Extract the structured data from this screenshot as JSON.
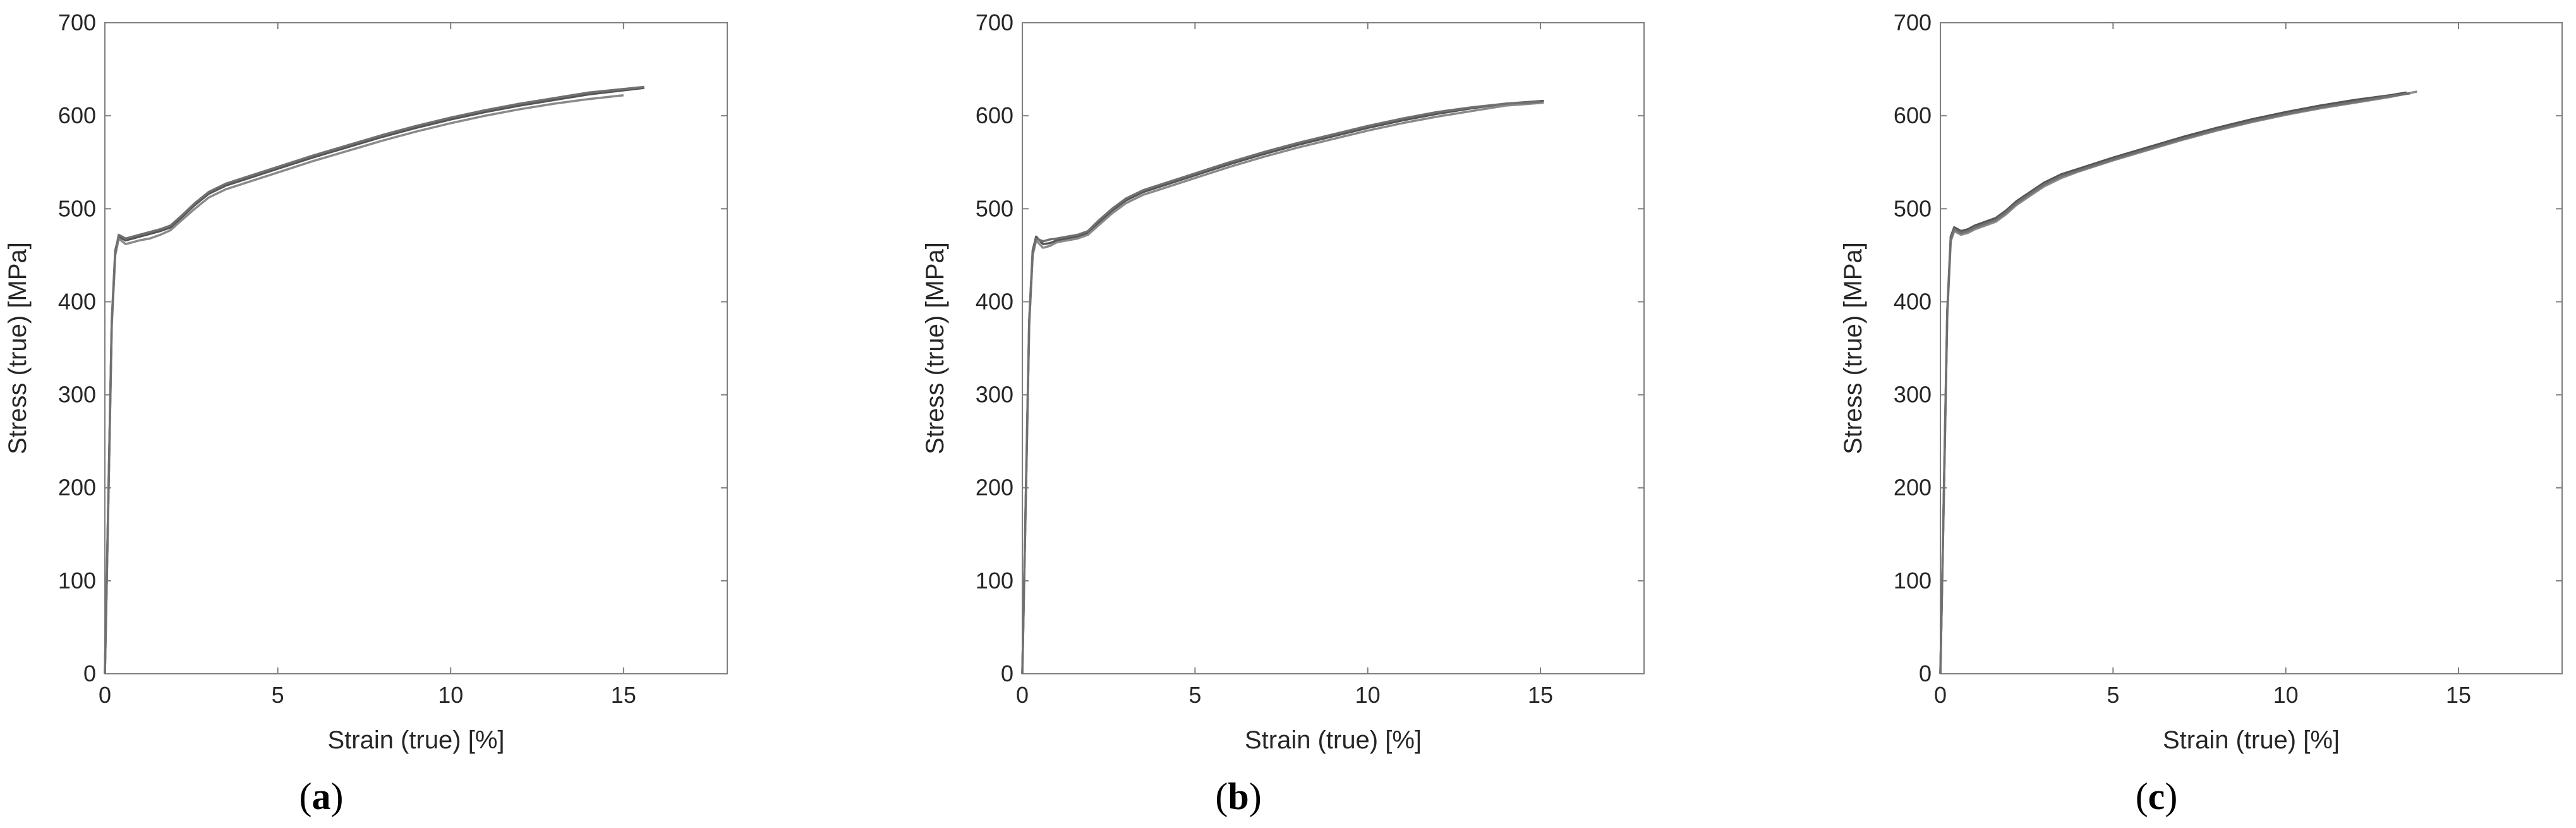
{
  "chart_data": [
    {
      "type": "line",
      "panel_label": "a",
      "xlabel": "Strain (true) [%]",
      "ylabel": "Stress (true) [MPa]",
      "xlim": [
        0,
        18
      ],
      "ylim": [
        0,
        700
      ],
      "xticks": [
        0,
        5,
        10,
        15
      ],
      "yticks": [
        0,
        100,
        200,
        300,
        400,
        500,
        600,
        700
      ],
      "grid": false,
      "series": [
        {
          "x": [
            0,
            0.1,
            0.2,
            0.3,
            0.4,
            0.6,
            0.8,
            1.0,
            1.3,
            1.6,
            1.9,
            2.2,
            2.6,
            3.0,
            3.5,
            4.0,
            5.0,
            6.0,
            7.0,
            8.0,
            9.0,
            10.0,
            11.0,
            12.0,
            13.0,
            14.0,
            15.6
          ],
          "y": [
            0,
            190,
            380,
            455,
            470,
            466,
            468,
            470,
            473,
            476,
            480,
            490,
            504,
            516,
            525,
            531,
            543,
            555,
            566,
            577,
            587,
            596,
            604,
            611,
            617,
            623,
            630
          ]
        },
        {
          "x": [
            0,
            0.1,
            0.2,
            0.3,
            0.4,
            0.6,
            0.8,
            1.0,
            1.3,
            1.6,
            1.9,
            2.2,
            2.6,
            3.0,
            3.5,
            4.0,
            5.0,
            6.0,
            7.0,
            8.0,
            9.0,
            10.0,
            11.0,
            12.0,
            13.0,
            14.0,
            15.0
          ],
          "y": [
            0,
            185,
            375,
            450,
            468,
            462,
            464,
            466,
            468,
            472,
            477,
            487,
            500,
            512,
            521,
            527,
            539,
            551,
            562,
            573,
            583,
            592,
            600,
            607,
            613,
            618,
            622
          ]
        },
        {
          "x": [
            0,
            0.1,
            0.2,
            0.3,
            0.4,
            0.6,
            0.8,
            1.0,
            1.3,
            1.6,
            1.9,
            2.2,
            2.6,
            3.0,
            3.5,
            4.0,
            5.0,
            6.0,
            7.0,
            8.0,
            9.0,
            10.0,
            11.0,
            12.0,
            13.0,
            14.0,
            15.6
          ],
          "y": [
            0,
            188,
            378,
            452,
            472,
            468,
            470,
            472,
            475,
            478,
            482,
            492,
            506,
            518,
            527,
            533,
            545,
            557,
            568,
            579,
            589,
            598,
            606,
            613,
            619,
            625,
            631
          ]
        }
      ]
    },
    {
      "type": "line",
      "panel_label": "b",
      "xlabel": "Strain (true) [%]",
      "ylabel": "Stress (true) [MPa]",
      "xlim": [
        0,
        18
      ],
      "ylim": [
        0,
        700
      ],
      "xticks": [
        0,
        5,
        10,
        15
      ],
      "yticks": [
        0,
        100,
        200,
        300,
        400,
        500,
        600,
        700
      ],
      "grid": false,
      "series": [
        {
          "x": [
            0,
            0.1,
            0.2,
            0.3,
            0.4,
            0.6,
            0.8,
            1.0,
            1.3,
            1.6,
            1.9,
            2.2,
            2.6,
            3.0,
            3.5,
            4.0,
            5.0,
            6.0,
            7.0,
            8.0,
            9.0,
            10.0,
            11.0,
            12.0,
            13.0,
            14.0,
            15.1
          ],
          "y": [
            0,
            190,
            380,
            455,
            470,
            462,
            463,
            466,
            468,
            470,
            474,
            485,
            498,
            509,
            518,
            524,
            536,
            548,
            559,
            569,
            578,
            587,
            595,
            602,
            608,
            613,
            616
          ]
        },
        {
          "x": [
            0,
            0.1,
            0.2,
            0.3,
            0.4,
            0.6,
            0.8,
            1.0,
            1.3,
            1.6,
            1.9,
            2.2,
            2.6,
            3.0,
            3.5,
            4.0,
            5.0,
            6.0,
            7.0,
            8.0,
            9.0,
            10.0,
            11.0,
            12.0,
            13.0,
            14.0,
            15.1
          ],
          "y": [
            0,
            185,
            375,
            450,
            466,
            458,
            460,
            464,
            466,
            468,
            472,
            482,
            495,
            506,
            515,
            521,
            533,
            545,
            556,
            566,
            575,
            584,
            592,
            599,
            605,
            611,
            614
          ]
        },
        {
          "x": [
            0,
            0.1,
            0.2,
            0.3,
            0.4,
            0.6,
            0.8,
            1.0,
            1.3,
            1.6,
            1.9,
            2.2,
            2.6,
            3.0,
            3.5,
            4.0,
            5.0,
            6.0,
            7.0,
            8.0,
            9.0,
            10.0,
            11.0,
            12.0,
            13.0,
            14.0,
            15.0
          ],
          "y": [
            0,
            188,
            378,
            452,
            468,
            465,
            467,
            468,
            470,
            472,
            476,
            487,
            500,
            511,
            520,
            526,
            538,
            550,
            561,
            571,
            580,
            589,
            597,
            604,
            609,
            613,
            615
          ]
        }
      ]
    },
    {
      "type": "line",
      "panel_label": "c",
      "xlabel": "Strain (true) [%]",
      "ylabel": "Stress (true) [MPa]",
      "xlim": [
        0,
        18
      ],
      "ylim": [
        0,
        700
      ],
      "xticks": [
        0,
        5,
        10,
        15
      ],
      "yticks": [
        0,
        100,
        200,
        300,
        400,
        500,
        600,
        700
      ],
      "grid": false,
      "series": [
        {
          "x": [
            0,
            0.1,
            0.2,
            0.3,
            0.4,
            0.6,
            0.8,
            1.0,
            1.3,
            1.6,
            1.9,
            2.2,
            2.6,
            3.0,
            3.5,
            4.0,
            5.0,
            6.0,
            7.0,
            8.0,
            9.0,
            10.0,
            11.0,
            12.0,
            13.0,
            13.5
          ],
          "y": [
            0,
            195,
            390,
            470,
            480,
            476,
            478,
            482,
            486,
            490,
            498,
            508,
            518,
            528,
            537,
            543,
            555,
            566,
            577,
            587,
            596,
            604,
            611,
            617,
            622,
            625
          ]
        },
        {
          "x": [
            0,
            0.1,
            0.2,
            0.3,
            0.4,
            0.6,
            0.8,
            1.0,
            1.3,
            1.6,
            1.9,
            2.2,
            2.6,
            3.0,
            3.5,
            4.0,
            5.0,
            6.0,
            7.0,
            8.0,
            9.0,
            10.0,
            11.0,
            12.0,
            13.0,
            13.8
          ],
          "y": [
            0,
            190,
            385,
            465,
            476,
            472,
            474,
            478,
            482,
            486,
            494,
            504,
            514,
            524,
            533,
            540,
            552,
            563,
            574,
            584,
            593,
            601,
            608,
            614,
            620,
            626
          ]
        },
        {
          "x": [
            0,
            0.1,
            0.2,
            0.3,
            0.4,
            0.6,
            0.8,
            1.0,
            1.3,
            1.6,
            1.9,
            2.2,
            2.6,
            3.0,
            3.5,
            4.0,
            5.0,
            6.0,
            7.0,
            8.0,
            9.0,
            10.0,
            11.0,
            12.0,
            13.0,
            13.6
          ],
          "y": [
            0,
            192,
            388,
            468,
            478,
            474,
            476,
            480,
            484,
            488,
            496,
            506,
            516,
            526,
            535,
            541,
            553,
            564,
            575,
            585,
            594,
            602,
            609,
            615,
            621,
            624
          ]
        }
      ]
    }
  ],
  "colors": {
    "series": [
      "#555555",
      "#8a8a8a",
      "#707070"
    ],
    "axis": "#7f7f7f",
    "text": "#262626"
  }
}
